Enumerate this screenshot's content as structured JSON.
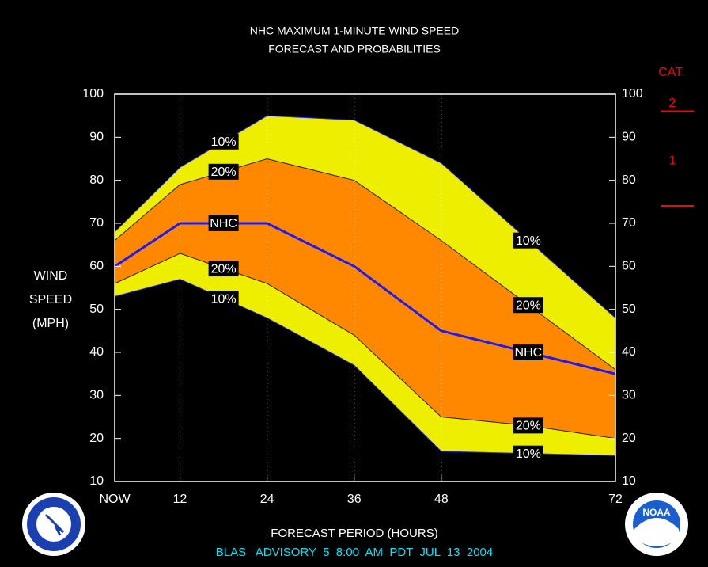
{
  "chart_data": {
    "type": "band",
    "title": [
      "NHC MAXIMUM 1-MINUTE WIND SPEED",
      "FORECAST AND PROBABILITIES"
    ],
    "ylabel": [
      "WIND",
      "SPEED",
      "(MPH)"
    ],
    "xlabel": "FORECAST PERIOD (HOURS)",
    "subtitle": "BLAS   ADVISORY  5  8:00  AM  PDT  JUL  13  2004",
    "x": [
      3,
      12,
      24,
      36,
      48,
      60,
      72
    ],
    "xlim": [
      3,
      72
    ],
    "xticks": [
      {
        "value": 3,
        "label": "NOW"
      },
      12,
      24,
      36,
      48,
      72
    ],
    "ylim": [
      10,
      100
    ],
    "yticks": [
      10,
      20,
      30,
      40,
      50,
      60,
      70,
      80,
      90,
      100
    ],
    "y2lim": [
      10,
      100
    ],
    "y2ticks": [
      10,
      20,
      30,
      40,
      50,
      60,
      70,
      80,
      90,
      100
    ],
    "grid": true,
    "band_colors": [
      "#eeee00",
      "#ff8800"
    ],
    "series": [
      {
        "name": "10%",
        "color": "#2222ff",
        "values": [
          68,
          83,
          95,
          94,
          84,
          66,
          48
        ]
      },
      {
        "name": "20%",
        "color": "#222222",
        "values": [
          66,
          79,
          85,
          80,
          66,
          51,
          36
        ]
      },
      {
        "name": "NHC",
        "color": "#1a1aff",
        "values": [
          60,
          70,
          70,
          60,
          45,
          40,
          35
        ]
      },
      {
        "name": "20%",
        "color": "#222222",
        "values": [
          56,
          63,
          56,
          44,
          25,
          23,
          20
        ]
      },
      {
        "name": "10%",
        "color": "#2222ff",
        "values": [
          53,
          57,
          48,
          37,
          17,
          16.5,
          16
        ]
      }
    ],
    "category_scale": {
      "title": "CAT.",
      "thresholds": [
        74,
        96
      ],
      "labels": [
        "1",
        "2"
      ],
      "color": "#ff0000"
    },
    "logo_text": "NOAA"
  }
}
